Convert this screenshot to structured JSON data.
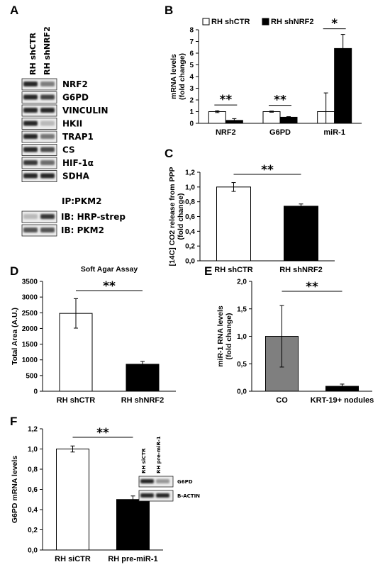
{
  "panel_labels": [
    "A",
    "B",
    "C",
    "D",
    "E",
    "F"
  ],
  "panelA": {
    "lanes": [
      "RH shCTR",
      "RH shNRF2"
    ],
    "blots": [
      "NRF2",
      "G6PD",
      "VINCULIN",
      "HKII",
      "TRAP1",
      "CS",
      "HIF-1α",
      "SDHA"
    ],
    "ip_label": "IP:PKM2",
    "ib_rows": [
      "IB: HRP-strep",
      "IB: PKM2"
    ]
  },
  "chart_data": [
    {
      "type": "bar",
      "panel": "B",
      "categories": [
        "NRF2",
        "G6PD",
        "miR-1"
      ],
      "series": [
        {
          "name": "RH shCTR",
          "values": [
            1.0,
            1.0,
            1.0
          ],
          "errors": [
            0.08,
            0.05,
            1.6
          ],
          "color": "#ffffff"
        },
        {
          "name": "RH shNRF2",
          "values": [
            0.25,
            0.52,
            6.4
          ],
          "errors": [
            0.15,
            0.05,
            1.2
          ],
          "color": "#000000"
        }
      ],
      "ylabel": "mRNA levels (fold change)",
      "ylim": [
        0,
        8
      ],
      "yticks": [
        "0",
        "1",
        "2",
        "3",
        "4",
        "5",
        "6",
        "7",
        "8"
      ],
      "significance": [
        "**",
        "**",
        "*"
      ],
      "legend": "top"
    },
    {
      "type": "bar",
      "panel": "C",
      "categories": [
        "RH shCTR",
        "RH shNRF2"
      ],
      "values": [
        1.0,
        0.74
      ],
      "errors": [
        0.06,
        0.03
      ],
      "colors": [
        "#ffffff",
        "#000000"
      ],
      "ylabel": "[14C] CO2 release from PPP (fold change)",
      "ylim": [
        0,
        1.2
      ],
      "yticks": [
        "0,0",
        "0,2",
        "0,4",
        "0,6",
        "0,8",
        "1,0",
        "1,2"
      ],
      "significance": "**"
    },
    {
      "type": "bar",
      "panel": "D",
      "title": "Soft Agar Assay",
      "categories": [
        "RH shCTR",
        "RH shNRF2"
      ],
      "values": [
        2480,
        860
      ],
      "errors": [
        470,
        90
      ],
      "colors": [
        "#ffffff",
        "#000000"
      ],
      "ylabel": "Total Area (A.U.)",
      "ylim": [
        0,
        3500
      ],
      "yticks": [
        "0",
        "500",
        "1000",
        "1500",
        "2000",
        "2500",
        "3000",
        "3500"
      ],
      "significance": "**"
    },
    {
      "type": "bar",
      "panel": "E",
      "categories": [
        "CO",
        "KRT-19+ nodules"
      ],
      "values": [
        1.0,
        0.09
      ],
      "errors": [
        0.56,
        0.04
      ],
      "colors": [
        "#7f7f7f",
        "#000000"
      ],
      "ylabel": "miR-1 RNA levels (fold change)",
      "ylim": [
        0,
        2.0
      ],
      "yticks": [
        "0,0",
        "0,5",
        "1,0",
        "1,5",
        "2,0"
      ],
      "significance": "**"
    },
    {
      "type": "bar",
      "panel": "F",
      "categories": [
        "RH siCTR",
        "RH pre-miR-1"
      ],
      "values": [
        1.0,
        0.5
      ],
      "errors": [
        0.03,
        0.035
      ],
      "colors": [
        "#ffffff",
        "#000000"
      ],
      "ylabel": "G6PD mRNA levels",
      "ylim": [
        0,
        1.2
      ],
      "yticks": [
        "0,0",
        "0,2",
        "0,4",
        "0,6",
        "0,8",
        "1,0",
        "1,2"
      ],
      "significance": "**"
    }
  ],
  "panelF_inset": {
    "lanes": [
      "RH siCTR",
      "RH pre-miR-1"
    ],
    "blots": [
      "G6PD",
      "B-ACTIN"
    ]
  }
}
